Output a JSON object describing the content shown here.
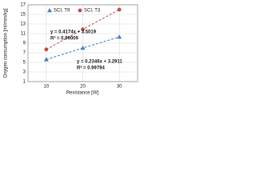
{
  "chart_data": {
    "type": "scatter",
    "ylabel": "Oxygen consumption [ml/min/kg]",
    "xlabel": "Resistance [W]",
    "xlim": [
      5,
      35
    ],
    "xticks": [
      10,
      20,
      30
    ],
    "ylim": [
      1,
      17
    ],
    "yticks": [
      1,
      3,
      5,
      7,
      9,
      11,
      13,
      15,
      17
    ],
    "grid": true,
    "trendline": true,
    "series": [
      {
        "name": "SCI, T9",
        "color": "#4f81bd",
        "marker": "triangle",
        "x": [
          10,
          20,
          30
        ],
        "values": [
          5.6,
          8.0,
          10.3
        ]
      },
      {
        "name": "SCI, T3",
        "color": "#c0504d",
        "marker": "circle",
        "x": [
          10,
          20,
          30
        ],
        "values": [
          7.7,
          11.9,
          16.0
        ]
      }
    ],
    "annotations": [
      {
        "text": "y = 0.4174x + 3.5019",
        "color": "#c0504d"
      },
      {
        "text": "R² = 0.99009",
        "color": "#c0504d"
      },
      {
        "text": "y = 0.2346x + 3.2911",
        "color": "#1f4e79"
      },
      {
        "text": "R² = 0.99794",
        "color": "#1f4e79"
      }
    ]
  }
}
